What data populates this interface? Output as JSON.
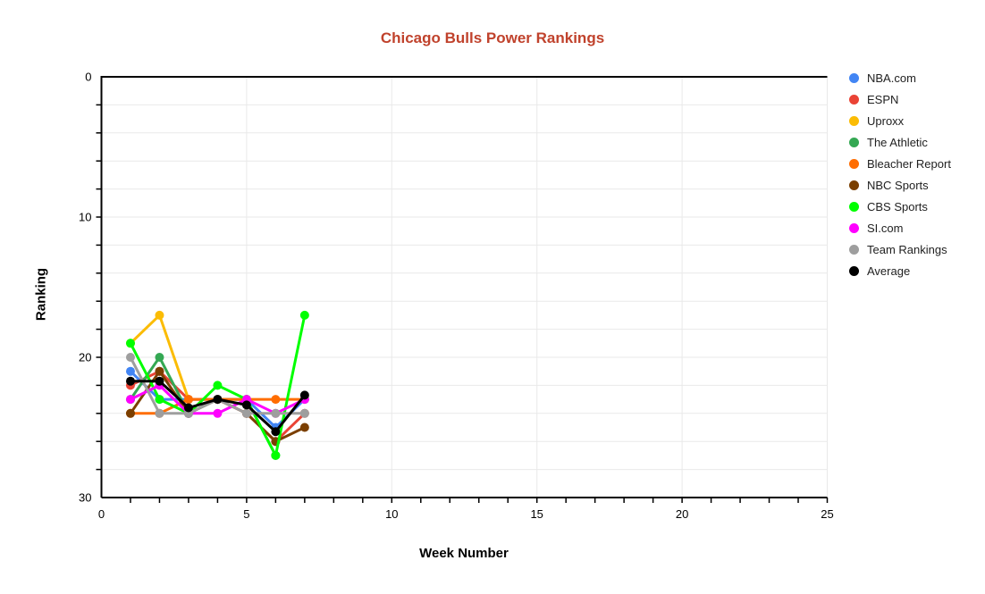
{
  "chart_data": {
    "type": "line",
    "title": "Chicago Bulls Power Rankings",
    "title_color": "#c0422c",
    "xlabel": "Week Number",
    "ylabel": "Ranking",
    "x": [
      1,
      2,
      3,
      4,
      5,
      6,
      7
    ],
    "xlim": [
      0,
      25
    ],
    "ylim": [
      0,
      30
    ],
    "y_axis_inverted": true,
    "x_ticks": [
      0,
      5,
      10,
      15,
      20,
      25
    ],
    "y_ticks": [
      0,
      10,
      20,
      30
    ],
    "y_minor_step": 2,
    "x_minor_step": 1,
    "grid": true,
    "legend_position": "right",
    "series": [
      {
        "name": "NBA.com",
        "color": "#4285F4",
        "values": [
          21,
          23,
          23,
          23,
          23,
          25,
          23
        ]
      },
      {
        "name": "ESPN",
        "color": "#EA4335",
        "values": [
          22,
          21,
          23,
          23,
          24,
          26,
          24
        ]
      },
      {
        "name": "Uproxx",
        "color": "#FBBC04",
        "values": [
          19,
          17,
          23,
          null,
          null,
          null,
          null
        ]
      },
      {
        "name": "The Athletic",
        "color": "#34A853",
        "values": [
          23,
          20,
          24,
          23,
          23,
          27,
          null
        ]
      },
      {
        "name": "Bleacher Report",
        "color": "#FF6D01",
        "values": [
          24,
          24,
          23,
          23,
          23,
          23,
          23
        ]
      },
      {
        "name": "NBC Sports",
        "color": "#7B3F00",
        "values": [
          24,
          21,
          24,
          23,
          24,
          26,
          25
        ]
      },
      {
        "name": "CBS Sports",
        "color": "#00FF00",
        "values": [
          19,
          23,
          24,
          22,
          23,
          27,
          17
        ]
      },
      {
        "name": "SI.com",
        "color": "#FF00FF",
        "values": [
          23,
          22,
          24,
          24,
          23,
          24,
          23
        ]
      },
      {
        "name": "Team Rankings",
        "color": "#9E9E9E",
        "values": [
          20,
          24,
          24,
          23,
          24,
          24,
          24
        ]
      },
      {
        "name": "Average",
        "color": "#000000",
        "values": [
          21.7,
          21.7,
          23.6,
          23.0,
          23.4,
          25.3,
          22.7
        ]
      }
    ]
  }
}
